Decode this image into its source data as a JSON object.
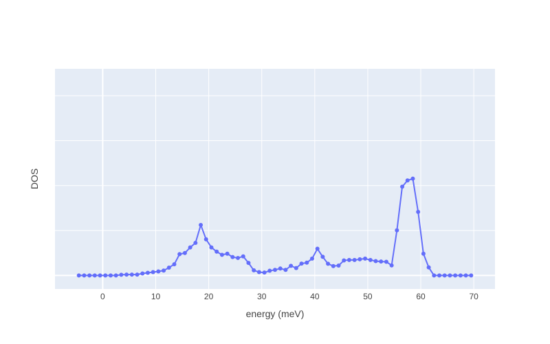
{
  "chart_data": {
    "type": "line",
    "title": "",
    "xlabel": "energy (meV)",
    "ylabel": "DOS",
    "xlim": [
      -9,
      74
    ],
    "ylim": [
      -0.03,
      0.46
    ],
    "x_ticks": [
      0,
      10,
      20,
      30,
      40,
      50,
      60,
      70
    ],
    "y_gridlines": [
      0,
      0.1,
      0.2,
      0.3,
      0.4
    ],
    "y_tick_labels_shown": false,
    "grid": true,
    "legend": "none",
    "colors": {
      "plot_background": "#e5ecf6",
      "grid": "#ffffff",
      "series": "#636efa"
    },
    "series": [
      {
        "x": [
          -4.5,
          -3.5,
          -2.5,
          -1.5,
          -0.5,
          0.5,
          1.5,
          2.5,
          3.5,
          4.5,
          5.5,
          6.5,
          7.5,
          8.5,
          9.5,
          10.5,
          11.5,
          12.5,
          13.5,
          14.5,
          15.5,
          16.5,
          17.5,
          18.5,
          19.5,
          20.5,
          21.5,
          22.5,
          23.5,
          24.5,
          25.5,
          26.5,
          27.5,
          28.5,
          29.5,
          30.5,
          31.5,
          32.5,
          33.5,
          34.5,
          35.5,
          36.5,
          37.5,
          38.5,
          39.5,
          40.5,
          41.5,
          42.5,
          43.5,
          44.5,
          45.5,
          46.5,
          47.5,
          48.5,
          49.5,
          50.5,
          51.5,
          52.5,
          53.5,
          54.5,
          55.5,
          56.5,
          57.5,
          58.5,
          59.5,
          60.5,
          61.5,
          62.5,
          63.5,
          64.5,
          65.5,
          66.5,
          67.5,
          68.5,
          69.5
        ],
        "values": [
          0,
          0,
          0,
          0,
          0,
          0,
          0,
          0,
          0.0015,
          0.002,
          0.002,
          0.002,
          0.0045,
          0.006,
          0.0075,
          0.009,
          0.011,
          0.0175,
          0.025,
          0.0475,
          0.05,
          0.0625,
          0.0725,
          0.1125,
          0.0805,
          0.0625,
          0.053,
          0.046,
          0.0485,
          0.041,
          0.039,
          0.0425,
          0.028,
          0.0115,
          0.0075,
          0.0065,
          0.0105,
          0.0125,
          0.0155,
          0.0125,
          0.0215,
          0.0165,
          0.0265,
          0.0285,
          0.0375,
          0.0595,
          0.0415,
          0.026,
          0.021,
          0.022,
          0.0335,
          0.0345,
          0.0345,
          0.036,
          0.0375,
          0.0345,
          0.032,
          0.031,
          0.0305,
          0.0225,
          0.1005,
          0.1975,
          0.2115,
          0.2155,
          0.1415,
          0.0485,
          0.018,
          0,
          0,
          0,
          0,
          0,
          0,
          0,
          0
        ]
      }
    ]
  }
}
